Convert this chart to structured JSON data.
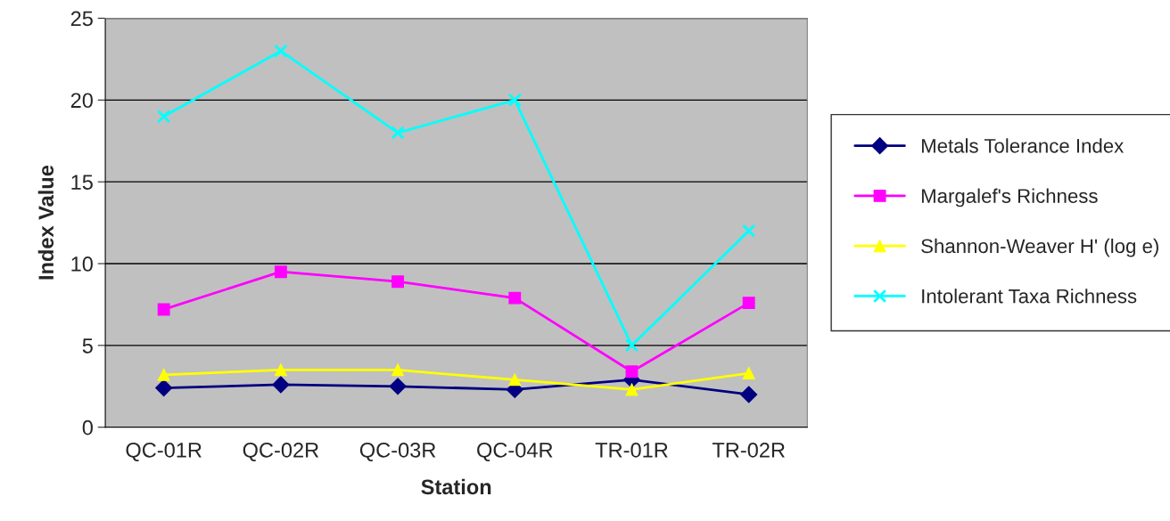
{
  "chart_data": {
    "type": "line",
    "xlabel": "Station",
    "ylabel": "Index Value",
    "categories": [
      "QC-01R",
      "QC-02R",
      "QC-03R",
      "QC-04R",
      "TR-01R",
      "TR-02R"
    ],
    "series": [
      {
        "name": "Metals Tolerance Index",
        "color": "#000080",
        "marker": "diamond",
        "values": [
          2.4,
          2.6,
          2.5,
          2.3,
          2.9,
          2.0
        ]
      },
      {
        "name": "Margalef's Richness",
        "color": "#ff00ff",
        "marker": "square",
        "values": [
          7.2,
          9.5,
          8.9,
          7.9,
          3.4,
          7.6
        ]
      },
      {
        "name": "Shannon-Weaver H' (log e)",
        "color": "#ffff00",
        "marker": "triangle",
        "values": [
          3.2,
          3.5,
          3.5,
          2.9,
          2.3,
          3.3
        ]
      },
      {
        "name": "Intolerant Taxa Richness",
        "color": "#00ffff",
        "marker": "cross",
        "values": [
          19,
          23,
          18,
          20,
          5,
          12
        ]
      }
    ],
    "ylim": [
      0,
      25
    ],
    "yticks": [
      0,
      5,
      10,
      15,
      20,
      25
    ],
    "grid": "y",
    "legend": "right"
  }
}
